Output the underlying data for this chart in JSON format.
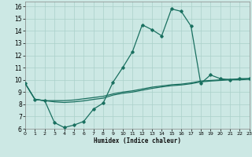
{
  "xlabel": "Humidex (Indice chaleur)",
  "xlim": [
    0,
    23
  ],
  "ylim": [
    6,
    16.4
  ],
  "xticks": [
    0,
    1,
    2,
    3,
    4,
    5,
    6,
    7,
    8,
    9,
    10,
    11,
    12,
    13,
    14,
    15,
    16,
    17,
    18,
    19,
    20,
    21,
    22,
    23
  ],
  "yticks": [
    6,
    7,
    8,
    9,
    10,
    11,
    12,
    13,
    14,
    15,
    16
  ],
  "bg_color": "#cce8e4",
  "grid_color": "#aad0ca",
  "line_color": "#1a7060",
  "curve_main_x": [
    0,
    1,
    2,
    3,
    4,
    5,
    6,
    7,
    8,
    9,
    10,
    11,
    12,
    13,
    14,
    15,
    16,
    17,
    18,
    19,
    20,
    21,
    22,
    23
  ],
  "curve_main_y": [
    9.7,
    8.4,
    8.3,
    6.5,
    6.1,
    6.3,
    6.6,
    7.6,
    8.1,
    9.8,
    11.0,
    12.3,
    14.5,
    14.1,
    13.6,
    15.8,
    15.6,
    14.4,
    9.7,
    10.4,
    10.1,
    10.0,
    10.1,
    10.1
  ],
  "curve_upper_x": [
    0,
    1,
    2,
    3,
    4,
    5,
    6,
    7,
    8,
    9,
    10,
    11,
    12,
    13,
    14,
    15,
    16,
    17,
    18,
    19,
    20,
    21,
    22,
    23
  ],
  "curve_upper_y": [
    9.7,
    8.4,
    8.3,
    8.3,
    8.3,
    8.35,
    8.45,
    8.55,
    8.65,
    8.85,
    9.0,
    9.1,
    9.25,
    9.4,
    9.5,
    9.6,
    9.65,
    9.75,
    9.9,
    9.95,
    10.0,
    10.05,
    10.05,
    10.1
  ],
  "curve_lower_x": [
    0,
    1,
    2,
    3,
    4,
    5,
    6,
    7,
    8,
    9,
    10,
    11,
    12,
    13,
    14,
    15,
    16,
    17,
    18,
    19,
    20,
    21,
    22,
    23
  ],
  "curve_lower_y": [
    9.7,
    8.4,
    8.3,
    8.2,
    8.15,
    8.2,
    8.28,
    8.4,
    8.5,
    8.75,
    8.9,
    9.0,
    9.15,
    9.3,
    9.42,
    9.52,
    9.58,
    9.68,
    9.83,
    9.9,
    9.95,
    10.0,
    10.0,
    10.05
  ]
}
